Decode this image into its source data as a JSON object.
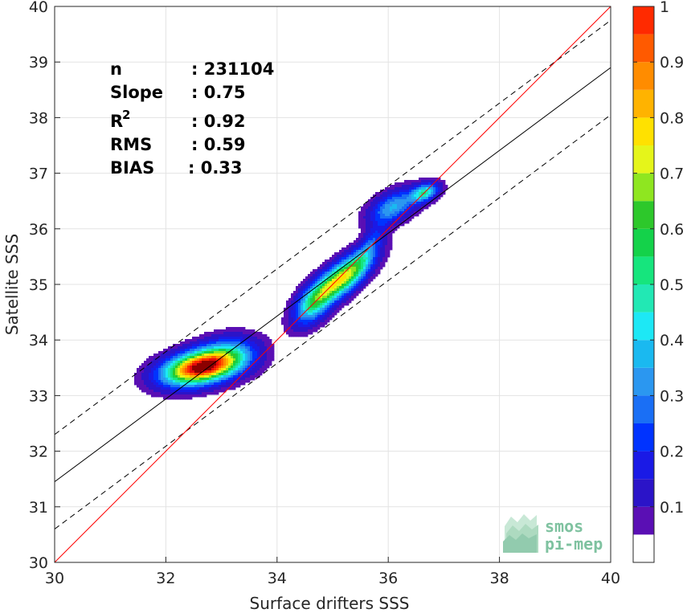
{
  "chart_data": {
    "type": "heatmap",
    "subtype": "density-contour-scatter",
    "xlabel": "Surface drifters SSS",
    "ylabel": "Satellite SSS",
    "xlim": [
      30,
      40
    ],
    "ylim": [
      30,
      40
    ],
    "xticks": [
      30,
      32,
      34,
      36,
      38,
      40
    ],
    "yticks": [
      30,
      31,
      32,
      33,
      34,
      35,
      36,
      37,
      38,
      39,
      40
    ],
    "grid": true,
    "stats": [
      {
        "label": "n",
        "value": ": 231104"
      },
      {
        "label": "Slope",
        "value": ": 0.75"
      },
      {
        "label": "R",
        "sup": "2",
        "value": ": 0.92"
      },
      {
        "label": "RMS",
        "value": ": 0.59"
      },
      {
        "label": "BIAS",
        "value": ": 0.33"
      }
    ],
    "lines": {
      "identity": {
        "slope": 1.0,
        "intercept": 0.0,
        "color": "#ff0000"
      },
      "regression": {
        "slope": 0.745,
        "intercept": 9.1,
        "color": "#000000"
      },
      "regression_upper": {
        "slope": 0.745,
        "intercept": 9.95,
        "color": "#000000",
        "style": "dashed"
      },
      "regression_lower": {
        "slope": 0.745,
        "intercept": 8.25,
        "color": "#000000",
        "style": "dashed"
      }
    },
    "density_clusters": [
      {
        "cx": 32.6,
        "cy": 33.5,
        "sx": 0.42,
        "sy": 0.2,
        "rho": 0.35,
        "weight": 1.0
      },
      {
        "cx": 33.1,
        "cy": 33.7,
        "sx": 0.35,
        "sy": 0.22,
        "rho": 0.2,
        "weight": 0.32
      },
      {
        "cx": 35.15,
        "cy": 35.1,
        "sx": 0.34,
        "sy": 0.3,
        "rho": 0.75,
        "weight": 0.7
      },
      {
        "cx": 34.65,
        "cy": 34.65,
        "sx": 0.22,
        "sy": 0.25,
        "rho": 0.5,
        "weight": 0.36
      },
      {
        "cx": 36.1,
        "cy": 36.4,
        "sx": 0.28,
        "sy": 0.2,
        "rho": 0.5,
        "weight": 0.3
      },
      {
        "cx": 36.65,
        "cy": 36.65,
        "sx": 0.16,
        "sy": 0.11,
        "rho": 0.4,
        "weight": 0.42
      },
      {
        "cx": 35.65,
        "cy": 35.65,
        "sx": 0.2,
        "sy": 0.32,
        "rho": 0.8,
        "weight": 0.18
      }
    ],
    "colorbar": {
      "range": [
        0,
        1
      ],
      "ticks": [
        "0.1",
        "0.2",
        "0.3",
        "0.4",
        "0.5",
        "0.6",
        "0.7",
        "0.8",
        "0.9",
        "1"
      ],
      "tick_values": [
        0.1,
        0.2,
        0.3,
        0.4,
        0.5,
        0.6,
        0.7,
        0.8,
        0.9,
        1.0
      ],
      "levels": [
        0,
        0.05,
        0.1,
        0.15,
        0.2,
        0.25,
        0.3,
        0.35,
        0.4,
        0.45,
        0.5,
        0.55,
        0.6,
        0.65,
        0.7,
        0.75,
        0.8,
        0.85,
        0.9,
        0.95,
        1.0
      ],
      "colors": [
        "#ffffff",
        "#5a0fb4",
        "#2b14c8",
        "#1a1ae6",
        "#0033ff",
        "#1a6ff5",
        "#2b97f0",
        "#1ab9f0",
        "#1de8f5",
        "#22e8b4",
        "#16e57d",
        "#14d24a",
        "#2dc82b",
        "#8fe620",
        "#e5f51a",
        "#ffe100",
        "#ffb300",
        "#ff8c00",
        "#ff5a00",
        "#ff2a00",
        "#e60a0a",
        "#cc0000",
        "#8b0000"
      ]
    }
  },
  "logo": {
    "line1": "smos",
    "line2": "pi-mep"
  }
}
